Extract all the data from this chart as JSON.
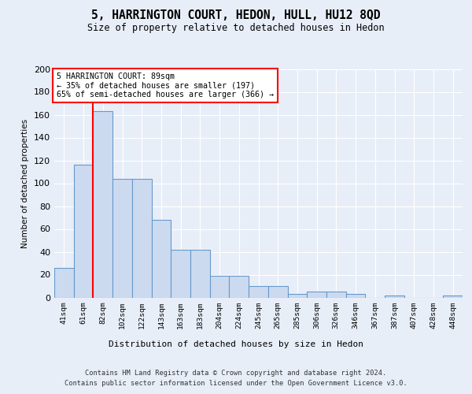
{
  "title": "5, HARRINGTON COURT, HEDON, HULL, HU12 8QD",
  "subtitle": "Size of property relative to detached houses in Hedon",
  "xlabel": "Distribution of detached houses by size in Hedon",
  "ylabel": "Number of detached properties",
  "bar_labels": [
    "41sqm",
    "61sqm",
    "82sqm",
    "102sqm",
    "122sqm",
    "143sqm",
    "163sqm",
    "183sqm",
    "204sqm",
    "224sqm",
    "245sqm",
    "265sqm",
    "285sqm",
    "306sqm",
    "326sqm",
    "346sqm",
    "367sqm",
    "387sqm",
    "407sqm",
    "428sqm",
    "448sqm"
  ],
  "bar_values": [
    26,
    116,
    163,
    104,
    104,
    68,
    42,
    42,
    19,
    19,
    10,
    10,
    3,
    5,
    5,
    3,
    0,
    2,
    0,
    0,
    2
  ],
  "bar_color": "#ccdaf0",
  "bar_edge_color": "#6699cc",
  "vline_color": "red",
  "vline_pos": 1.5,
  "annotation_title": "5 HARRINGTON COURT: 89sqm",
  "annotation_line1": "← 35% of detached houses are smaller (197)",
  "annotation_line2": "65% of semi-detached houses are larger (366) →",
  "annotation_box_color": "white",
  "annotation_box_edge": "red",
  "ylim": [
    0,
    200
  ],
  "yticks": [
    0,
    20,
    40,
    60,
    80,
    100,
    120,
    140,
    160,
    180,
    200
  ],
  "footnote1": "Contains HM Land Registry data © Crown copyright and database right 2024.",
  "footnote2": "Contains public sector information licensed under the Open Government Licence v3.0.",
  "background_color": "#e8eef8",
  "plot_bg_color": "#e8eef8",
  "title_fontsize": 10.5,
  "subtitle_fontsize": 8.5
}
